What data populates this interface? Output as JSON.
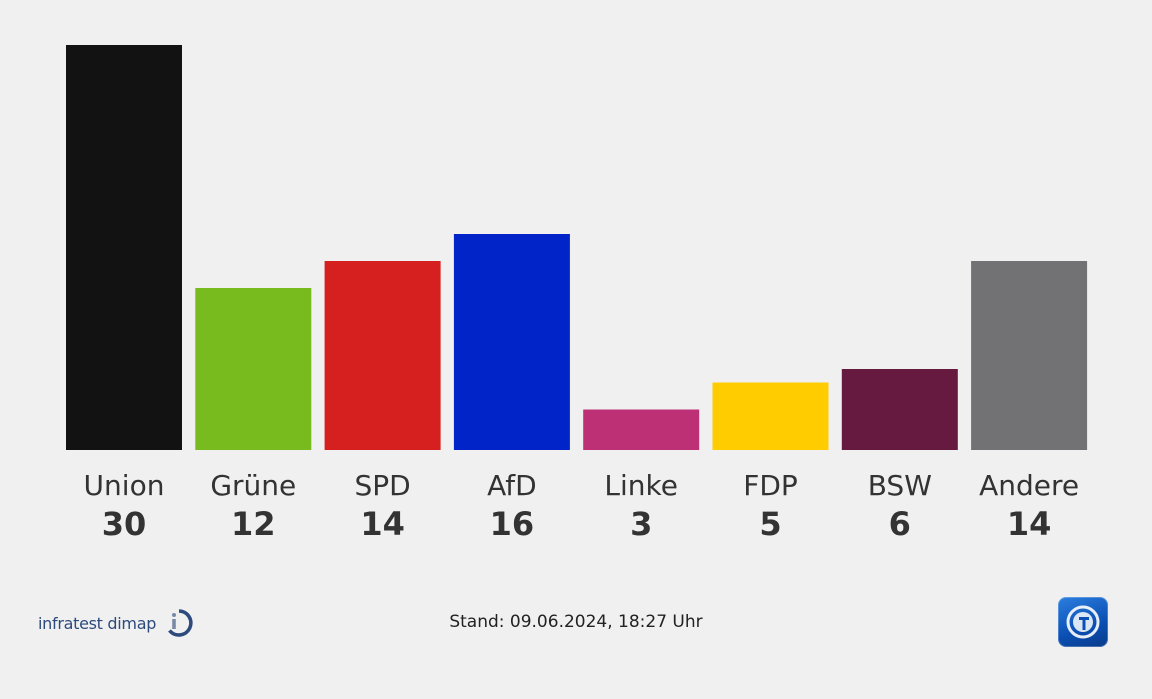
{
  "chart_data": {
    "type": "bar",
    "categories": [
      "Union",
      "Grüne",
      "SPD",
      "AfD",
      "Linke",
      "FDP",
      "BSW",
      "Andere"
    ],
    "values": [
      30,
      12,
      14,
      16,
      3,
      5,
      6,
      14
    ],
    "colors": [
      "#121212",
      "#78bb1e",
      "#d61f1f",
      "#0024c7",
      "#bd3075",
      "#ffcc00",
      "#661a40",
      "#727274"
    ],
    "title": "",
    "xlabel": "",
    "ylabel": "",
    "ylim": [
      0,
      30
    ],
    "grid": false
  },
  "footer": {
    "source": "infratest dimap",
    "stand": "Stand: 09.06.2024, 18:27 Uhr"
  },
  "icons": {
    "source_logo": "infratest-dimap-logo-icon",
    "broadcaster_logo": "tagesschau-logo-icon"
  }
}
